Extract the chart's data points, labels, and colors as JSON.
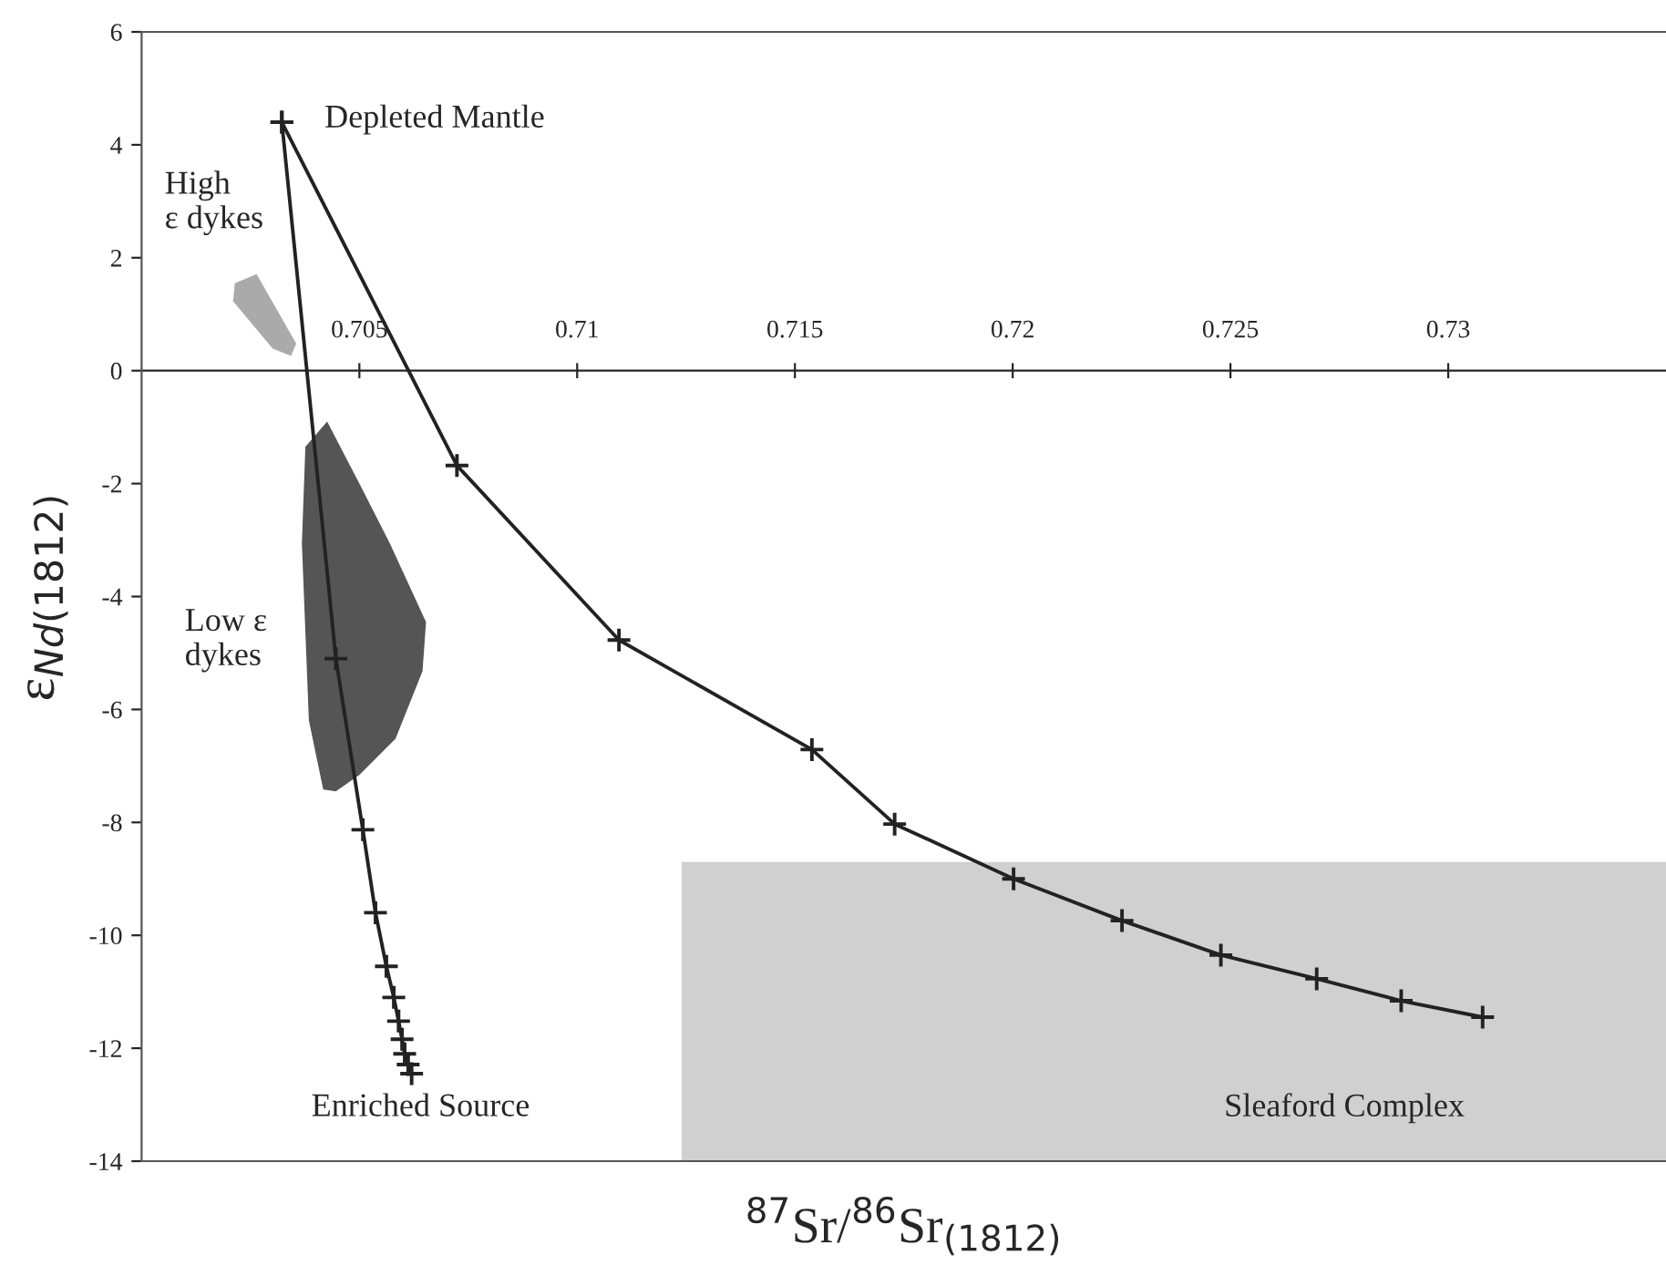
{
  "chart_data": {
    "type": "line",
    "xlabel": "$^{87}$Sr/$^{86}$Sr$_{(1812)}$",
    "ylabel": "ε$_{Nd(1812)}$",
    "xlim": [
      0.7,
      0.735
    ],
    "xticks": [
      0.705,
      0.71,
      0.715,
      0.72,
      0.725,
      0.73
    ],
    "ylim": [
      -14,
      6
    ],
    "yticks": [
      -14,
      -12,
      -10,
      -8,
      -6,
      -4,
      -2,
      0,
      2,
      4,
      6
    ],
    "grid": false,
    "line_style": "solid",
    "series": [
      {
        "type": "area",
        "color": "#d0d0d0",
        "x": [
          0.7124,
          0.735,
          0.735,
          0.7124
        ],
        "values": [
          -14,
          -14,
          -8.7,
          -8.7
        ]
      },
      {
        "type": "area",
        "color": "#aaaaaa",
        "x": [
          0.70214,
          0.70264,
          0.70355,
          0.70343,
          0.70301,
          0.7021
        ],
        "values": [
          1.55,
          1.71,
          0.48,
          0.26,
          0.39,
          1.23
        ]
      },
      {
        "type": "area",
        "color": "#555555",
        "x": [
          0.70426,
          0.705,
          0.7057,
          0.70653,
          0.70645,
          0.70583,
          0.705,
          0.70446,
          0.70417,
          0.70384,
          0.70368,
          0.70376
        ],
        "values": [
          -0.9,
          -2.0,
          -3.06,
          -4.45,
          -5.32,
          -6.52,
          -7.16,
          -7.45,
          -7.42,
          -6.19,
          -3.06,
          -1.35
        ]
      },
      {
        "marker": "cross",
        "color": "#222222",
        "x": [
          0.70322,
          0.70446,
          0.70508,
          0.70537,
          0.70562,
          0.70579,
          0.7059,
          0.70598,
          0.70604,
          0.70612,
          0.7062
        ],
        "values": [
          4.4,
          -5.1,
          -8.13,
          -9.6,
          -10.55,
          -11.1,
          -11.52,
          -11.84,
          -12.1,
          -12.29,
          -12.45
        ]
      },
      {
        "marker": "cross",
        "color": "#222222",
        "x": [
          0.70322,
          0.70724,
          0.71096,
          0.71539,
          0.71729,
          0.72002,
          0.72251,
          0.72478,
          0.72698,
          0.72892,
          0.73079
        ],
        "values": [
          4.4,
          -1.68,
          -4.77,
          -6.71,
          -8.03,
          -9.0,
          -9.74,
          -10.35,
          -10.77,
          -11.16,
          -11.45
        ]
      }
    ],
    "annotations": [
      "Depleted Mantle",
      "High\nε dykes",
      "Low ε\ndykes",
      "Enriched Source",
      "Sleaford Complex"
    ]
  }
}
